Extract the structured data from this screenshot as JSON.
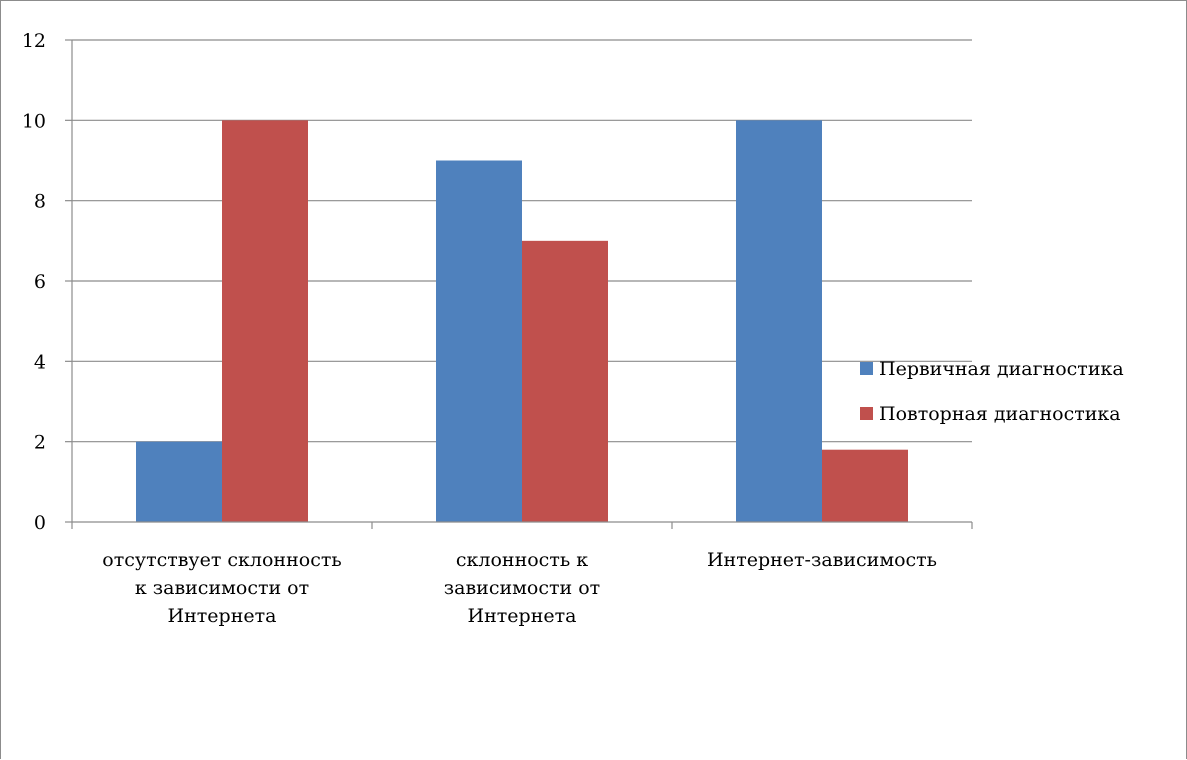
{
  "chart_data": {
    "type": "bar",
    "title": "",
    "xlabel": "",
    "ylabel": "",
    "ylim": [
      0,
      12
    ],
    "yticks": [
      "0",
      "2",
      "4",
      "6",
      "8",
      "10",
      "12"
    ],
    "grid": true,
    "legend_position": "right",
    "categories": [
      [
        "отсутствует склонность",
        "к зависимости от",
        "Интернета"
      ],
      [
        "склонность к",
        "зависимости от",
        "Интернета"
      ],
      [
        "Интернет-зависимость"
      ]
    ],
    "series": [
      {
        "name": "Первичная диагностика",
        "color": "#4f81bd",
        "values": [
          2,
          9,
          10
        ]
      },
      {
        "name": "Повторная диагностика",
        "color": "#c0504d",
        "values": [
          10,
          7,
          1.8
        ]
      }
    ]
  }
}
